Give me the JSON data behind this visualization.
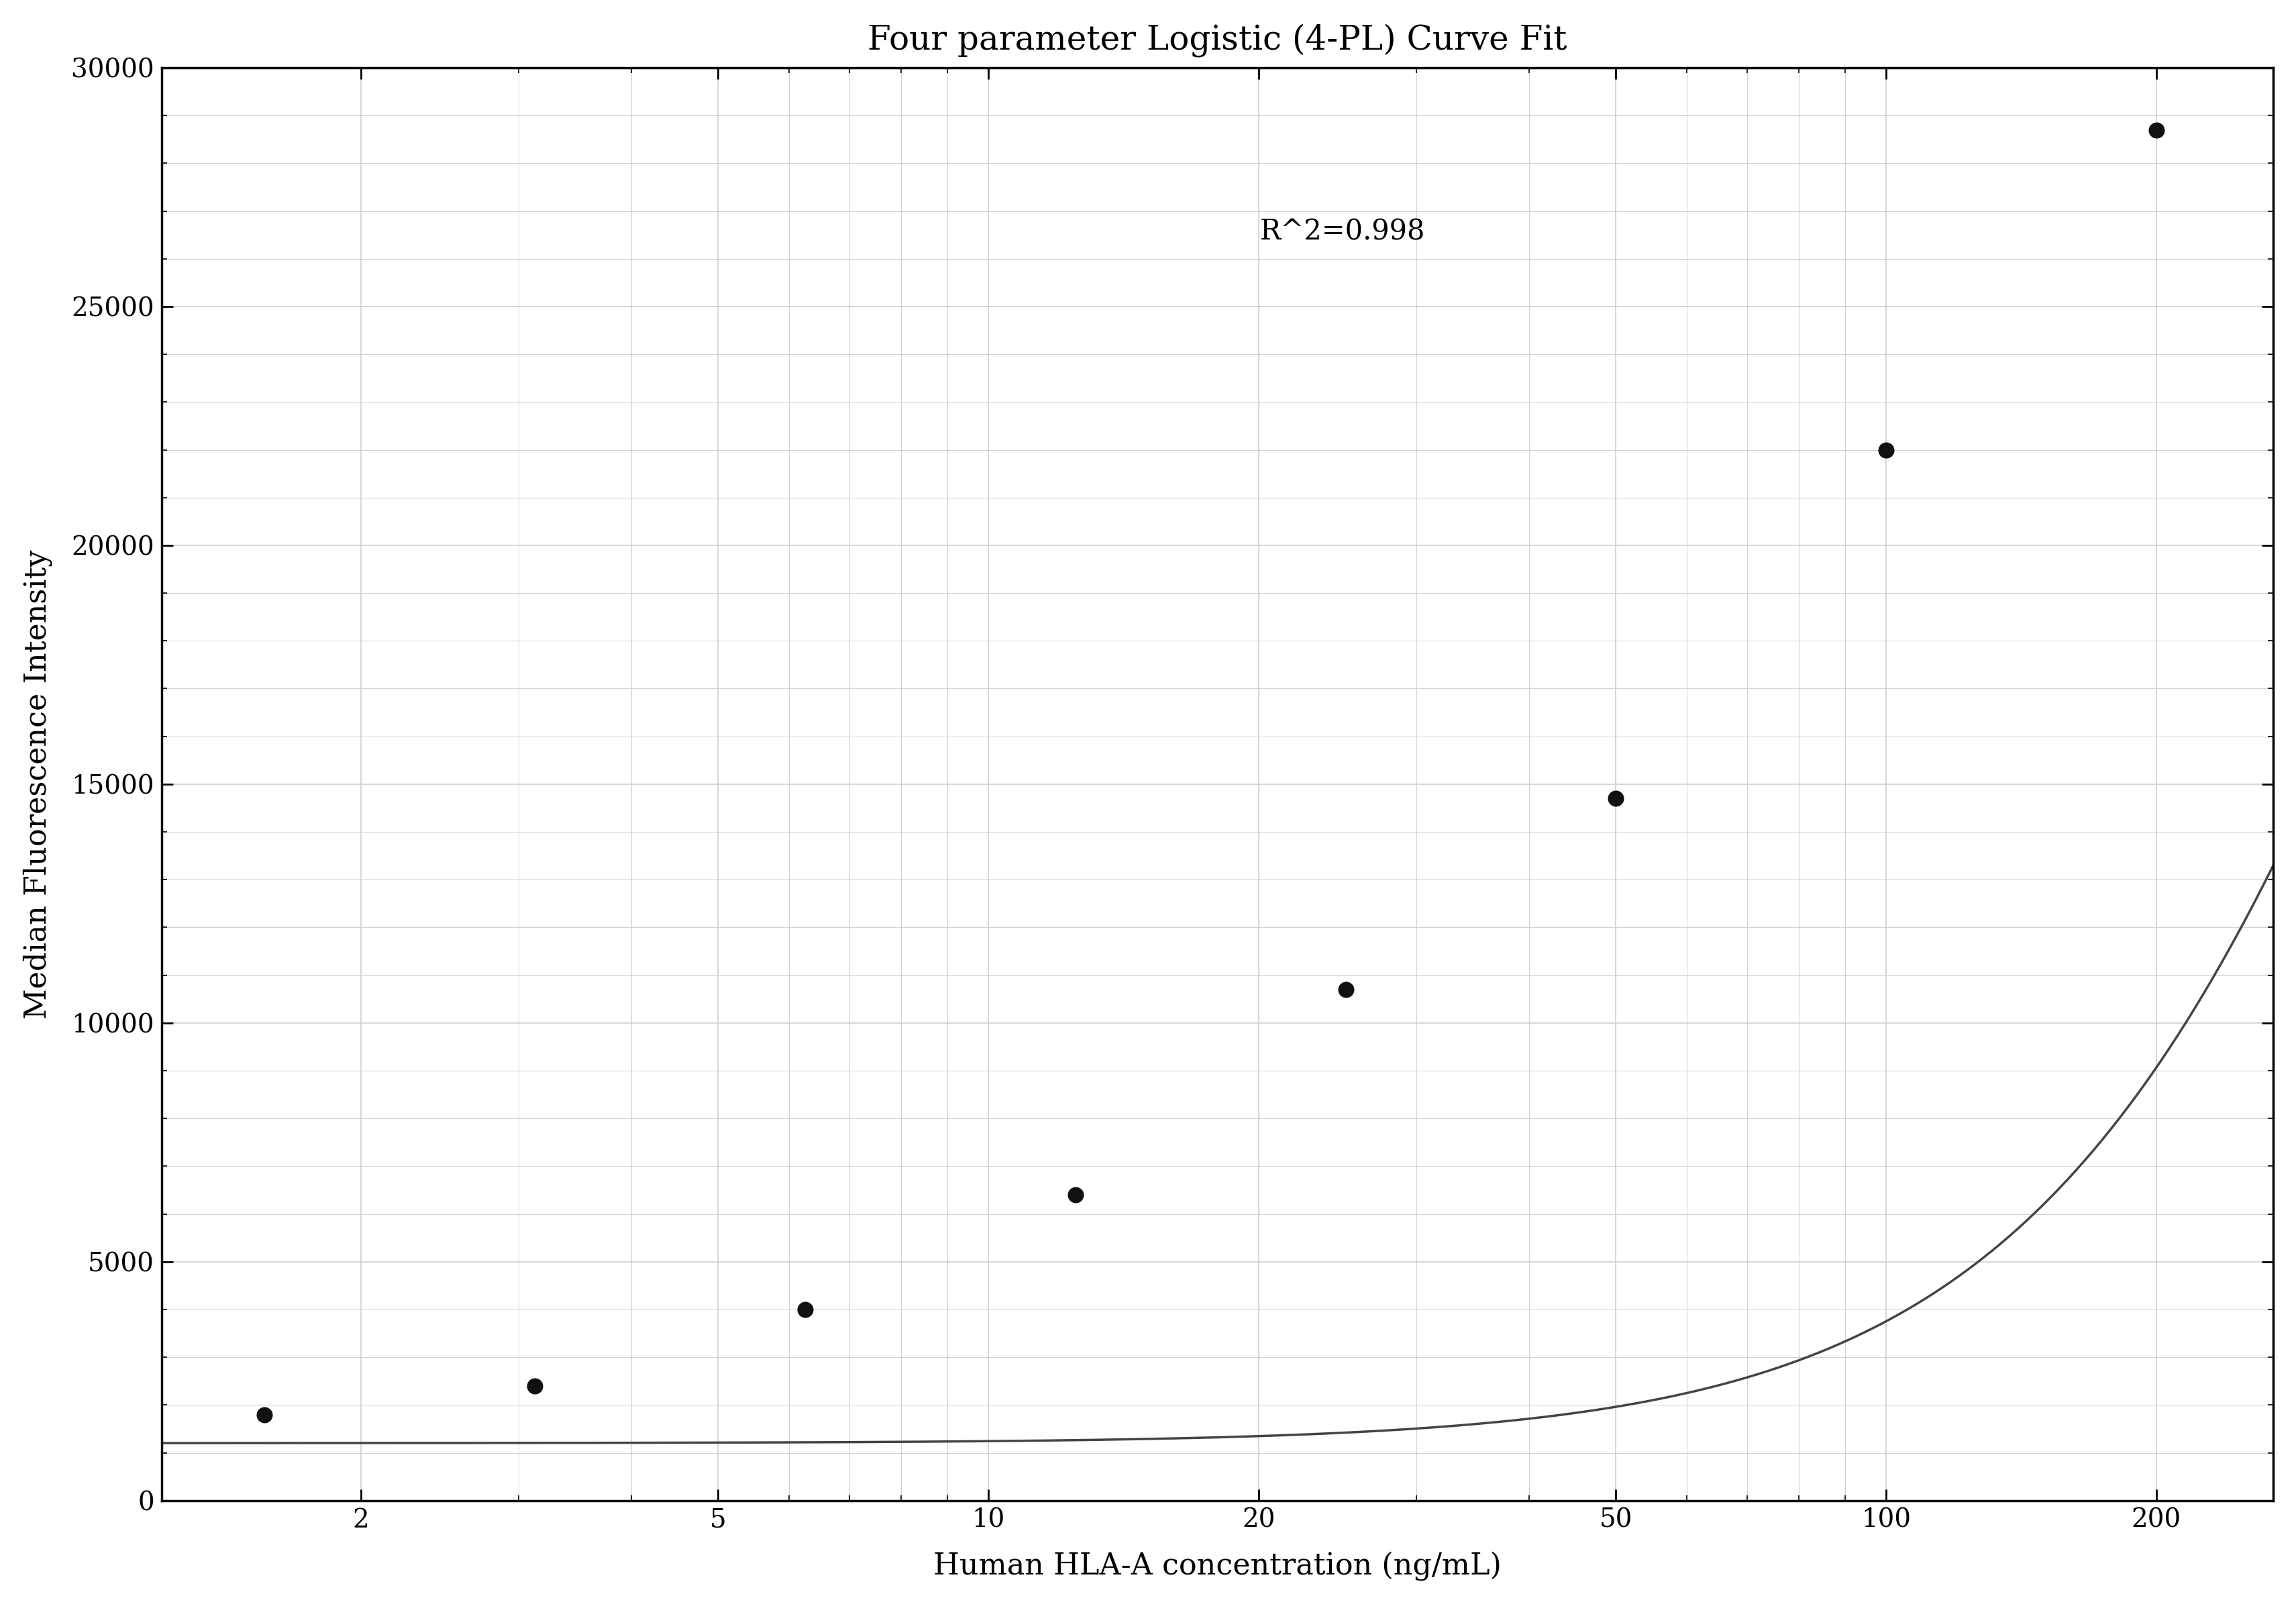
{
  "title": "Four parameter Logistic (4-PL) Curve Fit",
  "xlabel": "Human HLA-A concentration (ng/mL)",
  "ylabel": "Median Fluorescence Intensity",
  "r_squared": "R^2=0.998",
  "data_x": [
    1.5625,
    3.125,
    6.25,
    12.5,
    25,
    50,
    100,
    200
  ],
  "data_y": [
    1800,
    2400,
    4000,
    6400,
    10700,
    14700,
    22000,
    28700
  ],
  "xmin": 1.2,
  "xmax": 270,
  "ymin": 0,
  "ymax": 30000,
  "xticks": [
    2,
    5,
    10,
    20,
    50,
    100,
    200
  ],
  "yticks": [
    0,
    5000,
    10000,
    15000,
    20000,
    25000,
    30000
  ],
  "grid_color": "#d0d0d0",
  "line_color": "#444444",
  "marker_color": "#111111",
  "bg_color": "#ffffff",
  "title_fontsize": 36,
  "label_fontsize": 32,
  "tick_fontsize": 28,
  "annotation_fontsize": 30,
  "font_family": "serif"
}
